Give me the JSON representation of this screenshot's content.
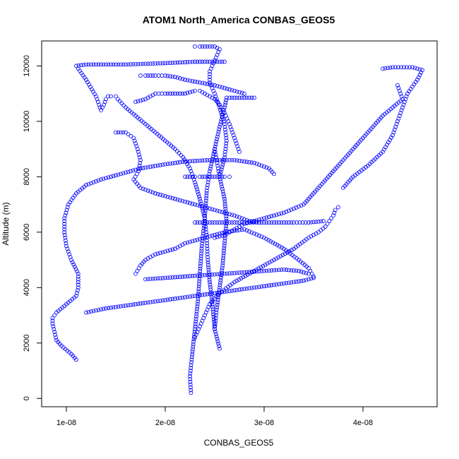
{
  "chart_data": {
    "type": "scatter",
    "title": "ATOM1 North_America CONBAS_GEOS5",
    "xlabel": "CONBAS_GEOS5",
    "ylabel": "Altitude (m)",
    "xlim": [
      7.5e-09,
      4.75e-08
    ],
    "ylim": [
      -300,
      12900
    ],
    "x_ticks": [
      1e-08,
      2e-08,
      3e-08,
      4e-08
    ],
    "x_tick_labels": [
      "1e-08",
      "2e-08",
      "3e-08",
      "4e-08"
    ],
    "y_ticks": [
      0,
      2000,
      4000,
      6000,
      8000,
      10000,
      12000
    ],
    "y_tick_labels": [
      "0",
      "2000",
      "4000",
      "6000",
      "8000",
      "10000",
      "12000"
    ],
    "grid": false,
    "marker": "open-circle",
    "color": "#0000ff",
    "profiles": [
      {
        "x": [
          2.26e-08,
          2.25e-08,
          2.27e-08,
          2.3e-08,
          2.33e-08,
          2.35e-08,
          2.37e-08,
          2.4e-08,
          2.42e-08,
          2.45e-08,
          2.5e-08,
          2.55e-08,
          2.6e-08,
          2.62e-08,
          2.65e-08,
          2.7e-08,
          2.75e-08,
          2.8e-08,
          2.9e-08
        ],
        "y": [
          200,
          800,
          1500,
          2500,
          3500,
          4500,
          5500,
          6500,
          7500,
          8200,
          9000,
          9800,
          10500,
          10850,
          10850,
          10850,
          10850,
          10850,
          10850
        ]
      },
      {
        "x": [
          2.55e-08,
          2.5e-08,
          2.48e-08,
          2.45e-08,
          2.43e-08,
          2.42e-08,
          2.4e-08,
          2.35e-08,
          2.3e-08,
          2.25e-08,
          2.18e-08,
          2.1e-08,
          2e-08,
          1.9e-08,
          1.8e-08,
          1.7e-08,
          1.6e-08,
          1.52e-08,
          1.5e-08,
          1.45e-08,
          1.42e-08,
          1.4e-08,
          1.38e-08,
          1.35e-08,
          1.3e-08,
          1.2e-08,
          1.12e-08,
          1.1e-08,
          1.2e-08,
          1.4e-08,
          1.6e-08,
          2e-08,
          2.3e-08,
          2.6e-08
        ],
        "y": [
          1800,
          2500,
          3300,
          4200,
          5000,
          5800,
          6500,
          7200,
          7800,
          8300,
          8700,
          9000,
          9300,
          9600,
          9900,
          10200,
          10500,
          10800,
          10900,
          10900,
          10900,
          10800,
          10600,
          10400,
          10900,
          11500,
          11900,
          12000,
          12050,
          12050,
          12050,
          12100,
          12150,
          12150
        ]
      },
      {
        "x": [
          2.3e-08,
          2.35e-08,
          2.4e-08,
          2.45e-08,
          2.55e-08,
          2.7e-08,
          2.9e-08,
          3.1e-08,
          3.3e-08,
          3.45e-08,
          3.55e-08,
          3.62e-08,
          3.66e-08,
          3.7e-08,
          3.72e-08,
          3.75e-08
        ],
        "y": [
          2200,
          2600,
          3000,
          3400,
          3800,
          4200,
          4600,
          5000,
          5400,
          5800,
          6000,
          6200,
          6400,
          6600,
          6800,
          6900
        ]
      },
      {
        "x": [
          1.1e-08,
          1.05e-08,
          9.5e-09,
          9e-09,
          8.8e-09,
          8.6e-09,
          8.6e-09,
          9e-09,
          1e-08,
          1.1e-08,
          1.12e-08,
          1.12e-08,
          1.05e-08,
          1e-08,
          9.8e-09,
          9.8e-09,
          1.02e-08,
          1.1e-08,
          1.2e-08,
          1.35e-08,
          1.55e-08,
          1.75e-08,
          2e-08,
          2.2e-08,
          2.45e-08,
          2.7e-08,
          2.9e-08,
          3.05e-08,
          3.1e-08
        ],
        "y": [
          1400,
          1600,
          1900,
          2100,
          2400,
          2700,
          2900,
          3100,
          3400,
          3700,
          4000,
          4500,
          5000,
          5500,
          6000,
          6500,
          7000,
          7400,
          7700,
          7900,
          8100,
          8300,
          8450,
          8550,
          8600,
          8600,
          8500,
          8300,
          8100
        ]
      },
      {
        "x": [
          1.7e-08,
          1.75e-08,
          1.8e-08,
          1.9e-08,
          2e-08,
          2.1e-08,
          2.15e-08,
          2.2e-08,
          2.3e-08,
          2.4e-08,
          2.5e-08,
          2.55e-08,
          2.6e-08,
          2.7e-08,
          2.8e-08,
          3e-08,
          3.2e-08,
          3.35e-08,
          3.45e-08,
          3.5e-08
        ],
        "y": [
          4500,
          4800,
          5000,
          5200,
          5300,
          5400,
          5500,
          5600,
          5700,
          5800,
          5900,
          5950,
          6000,
          6050,
          6100,
          5800,
          5400,
          5000,
          4700,
          4400
        ]
      },
      {
        "x": [
          4.35e-08,
          4.4e-08,
          4.3e-08,
          4.2e-08,
          4.1e-08,
          4e-08,
          3.9e-08,
          3.8e-08,
          3.7e-08,
          3.6e-08,
          3.5e-08,
          3.4e-08,
          3.2e-08,
          3e-08,
          2.8e-08,
          2.7e-08,
          2.6e-08,
          2.5e-08
        ],
        "y": [
          11300,
          10800,
          10500,
          10200,
          9800,
          9400,
          9000,
          8600,
          8200,
          7800,
          7400,
          7000,
          6700,
          6500,
          6300,
          6100,
          5900,
          5800
        ]
      },
      {
        "x": [
          4.2e-08,
          4.3e-08,
          4.5e-08,
          4.6e-08,
          4.55e-08,
          4.45e-08,
          4.4e-08,
          4.35e-08,
          4.3e-08,
          4.2e-08,
          4.05e-08,
          3.9e-08,
          3.8e-08
        ],
        "y": [
          11900,
          11950,
          11950,
          11850,
          11500,
          11000,
          10500,
          10000,
          9500,
          8900,
          8400,
          8000,
          7600
        ]
      },
      {
        "x": [
          1.5e-08,
          1.6e-08,
          1.68e-08,
          1.72e-08,
          1.75e-08,
          1.73e-08,
          1.68e-08,
          1.75e-08,
          1.9e-08,
          2.1e-08,
          2.3e-08,
          2.5e-08,
          2.7e-08,
          2.85e-08,
          2.95e-08
        ],
        "y": [
          9600,
          9600,
          9400,
          9000,
          8600,
          8200,
          7900,
          7600,
          7400,
          7200,
          7000,
          6800,
          6600,
          6400,
          6350
        ]
      },
      {
        "x": [
          2.3e-08,
          2.4e-08,
          2.5e-08,
          2.6e-08,
          2.7e-08,
          2.8e-08,
          2.95e-08,
          3.1e-08,
          3.3e-08,
          3.45e-08,
          3.55e-08,
          3.6e-08
        ],
        "y": [
          6350,
          6350,
          6350,
          6350,
          6350,
          6350,
          6350,
          6350,
          6350,
          6350,
          6380,
          6400
        ]
      },
      {
        "x": [
          1.7e-08,
          1.75e-08,
          1.8e-08,
          1.85e-08,
          1.9e-08,
          2e-08,
          2.1e-08,
          2.2e-08,
          2.25e-08,
          2.3e-08,
          2.35e-08,
          2.4e-08,
          2.45e-08,
          2.5e-08,
          2.55e-08,
          2.6e-08,
          2.65e-08,
          2.7e-08,
          2.75e-08
        ],
        "y": [
          10700,
          10750,
          10800,
          10900,
          11000,
          11000,
          11000,
          11000,
          11050,
          11100,
          11100,
          11000,
          10900,
          10800,
          10600,
          10300,
          9900,
          9400,
          8900
        ]
      },
      {
        "x": [
          2.3e-08,
          2.35e-08,
          2.4e-08,
          2.45e-08,
          2.5e-08,
          2.55e-08,
          2.5e-08,
          2.45e-08,
          2.45e-08,
          2.5e-08,
          2.55e-08,
          2.6e-08,
          2.62e-08,
          2.6e-08,
          2.55e-08
        ],
        "y": [
          12700,
          12700,
          12700,
          12700,
          12700,
          12600,
          12200,
          11800,
          11400,
          11000,
          10500,
          9900,
          9300,
          8700,
          8000
        ]
      },
      {
        "x": [
          2.5e-08,
          2.52e-08,
          2.55e-08,
          2.58e-08,
          2.6e-08,
          2.62e-08,
          2.6e-08,
          2.55e-08,
          2.52e-08,
          2.5e-08
        ],
        "y": [
          2500,
          3200,
          4000,
          4800,
          5600,
          6400,
          7200,
          8000,
          8600,
          9000
        ]
      },
      {
        "x": [
          1.8e-08,
          2e-08,
          2.2e-08,
          2.4e-08,
          2.6e-08,
          2.8e-08,
          3e-08,
          3.2e-08,
          3.35e-08,
          3.45e-08
        ],
        "y": [
          4300,
          4350,
          4400,
          4450,
          4500,
          4550,
          4600,
          4650,
          4600,
          4500
        ]
      },
      {
        "x": [
          1.2e-08,
          1.4e-08,
          1.6e-08,
          1.8e-08,
          2e-08,
          2.2e-08,
          2.4e-08,
          2.6e-08,
          2.8e-08,
          3e-08,
          3.2e-08,
          3.4e-08,
          3.5e-08
        ],
        "y": [
          3100,
          3250,
          3350,
          3450,
          3550,
          3650,
          3750,
          3850,
          3950,
          4050,
          4150,
          4250,
          4350
        ]
      },
      {
        "x": [
          1.75e-08,
          1.8e-08,
          1.9e-08,
          2e-08,
          2.1e-08,
          2.2e-08,
          2.35e-08,
          2.5e-08,
          2.6e-08,
          2.7e-08,
          2.8e-08
        ],
        "y": [
          11650,
          11650,
          11650,
          11650,
          11600,
          11500,
          11400,
          11300,
          11200,
          11100,
          11000
        ]
      },
      {
        "x": [
          2.2e-08,
          2.25e-08,
          2.3e-08,
          2.35e-08,
          2.4e-08,
          2.45e-08,
          2.5e-08,
          2.55e-08,
          2.6e-08,
          2.65e-08
        ],
        "y": [
          8000,
          8000,
          8000,
          8000,
          8000,
          8000,
          8000,
          8000,
          8000,
          8000
        ]
      }
    ]
  }
}
